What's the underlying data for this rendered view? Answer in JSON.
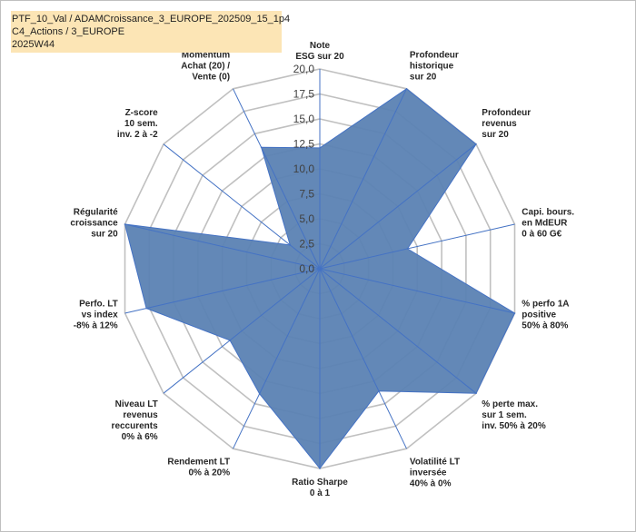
{
  "header": {
    "lines": [
      "PTF_10_Val / ADAMCroissance_3_EUROPE_202509_15_1p4",
      "C4_Actions / 3_EUROPE",
      "2025W44"
    ]
  },
  "colors": {
    "fill": "#5b82b3",
    "stroke": "#4472c4",
    "grid": "#c0c0c0",
    "title_bg": "#fce5b5"
  },
  "chart_data": {
    "type": "radar",
    "title": "PTF_10_Val / ADAMCroissance_3_EUROPE_202509_15_1p4 — C4_Actions / 3_EUROPE — 2025W44",
    "rmin": 0,
    "rmax": 20,
    "tick_step": 2.5,
    "tick_labels": [
      "0,0",
      "2,5",
      "5,0",
      "7,5",
      "10,0",
      "12,5",
      "15,0",
      "17,5",
      "20,0"
    ],
    "categories": [
      [
        "Note",
        "ESG sur 20"
      ],
      [
        "Profondeur",
        "historique",
        "sur 20"
      ],
      [
        "Profondeur",
        "revenus",
        "sur 20"
      ],
      [
        "Capi. bours.",
        "en MdEUR",
        "0 à 60 G€"
      ],
      [
        "% perfo 1A",
        "positive",
        "50% à 80%"
      ],
      [
        "% perte max.",
        "sur 1 sem.",
        "inv. 50% à 20%"
      ],
      [
        "Volatilité LT",
        "inversée",
        "40% à 0%"
      ],
      [
        "Ratio Sharpe",
        "0 à 1"
      ],
      [
        "Rendement LT",
        "0% à 20%"
      ],
      [
        "Niveau LT",
        "revenus",
        "reccurents",
        "0% à 6%"
      ],
      [
        "Perfo. LT",
        "vs index",
        "-8% à 12%"
      ],
      [
        "Régularité",
        "croissance",
        "sur 20"
      ],
      [
        "Z-score",
        "10 sem.",
        "inv. 2 à -2"
      ],
      [
        "Momentum",
        "Achat (20) /",
        "Vente (0)"
      ]
    ],
    "series": [
      {
        "name": "PTF_10_Val",
        "values": [
          12.1,
          20.0,
          20.0,
          9.0,
          20.0,
          20.0,
          13.6,
          20.0,
          13.9,
          11.5,
          17.8,
          20.0,
          3.8,
          13.5
        ]
      }
    ]
  }
}
